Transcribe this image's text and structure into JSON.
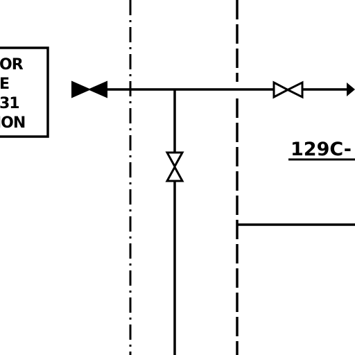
{
  "drawing": {
    "note_box": {
      "lines": [
        "OR",
        "E",
        "31",
        "ION"
      ]
    },
    "line_tag": "129C-",
    "colors": {
      "ink": "#000000",
      "paper": "#ffffff"
    },
    "symbols": [
      "gate-valve-filled",
      "gate-valve-open",
      "gate-valve-open-vertical",
      "flow-arrow"
    ]
  }
}
